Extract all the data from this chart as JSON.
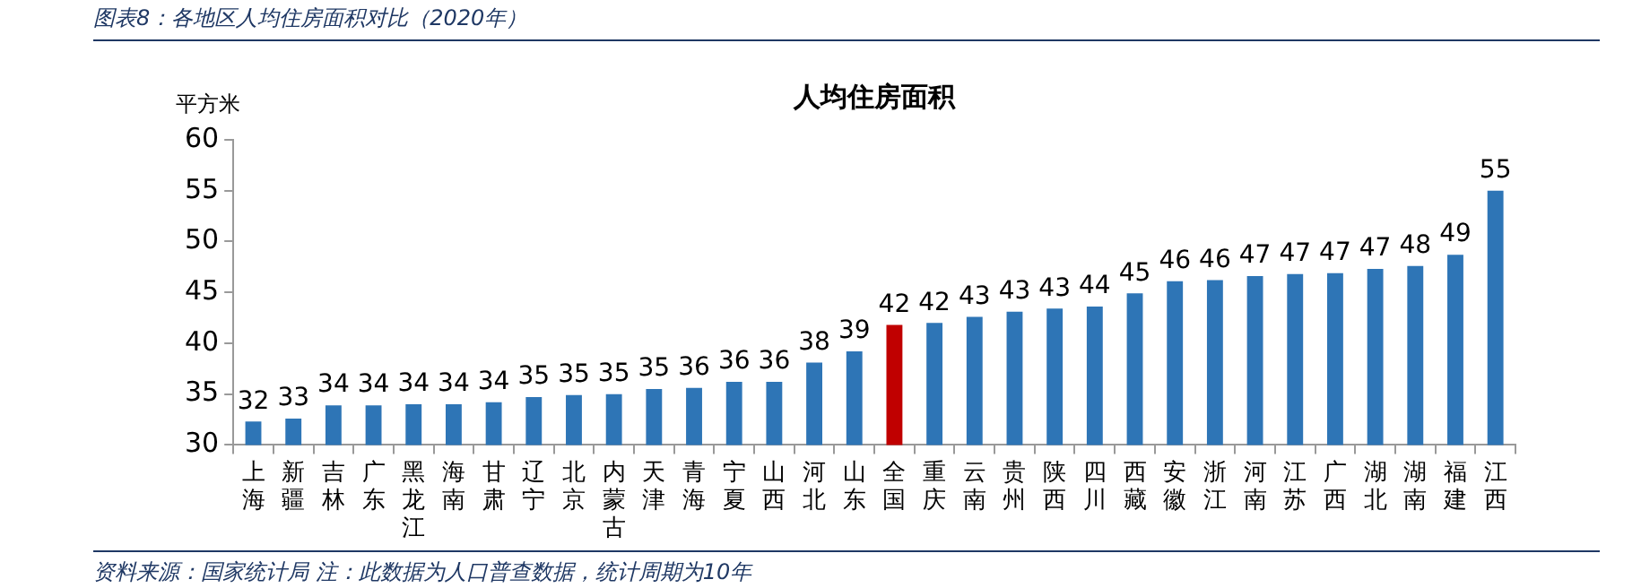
{
  "chart_data": {
    "type": "bar",
    "title": "图表8：各地区人均住房面积对比（2020年）",
    "subtitle": "人均住房面积",
    "ylabel": "平方米",
    "categories": [
      "上海",
      "新疆",
      "吉林",
      "广东",
      "黑龙江",
      "海南",
      "甘肃",
      "辽宁",
      "北京",
      "内蒙古",
      "天津",
      "青海",
      "宁夏",
      "山西",
      "河北",
      "山东",
      "全国",
      "重庆",
      "云南",
      "贵州",
      "陕西",
      "四川",
      "西藏",
      "安徽",
      "浙江",
      "河南",
      "江苏",
      "广西",
      "湖北",
      "湖南",
      "福建",
      "江西"
    ],
    "values": [
      32.3,
      32.6,
      33.9,
      33.9,
      34.0,
      34.0,
      34.2,
      34.7,
      34.9,
      35.0,
      35.5,
      35.6,
      36.2,
      36.2,
      38.1,
      39.2,
      41.8,
      42.0,
      42.6,
      43.1,
      43.4,
      43.6,
      44.9,
      46.1,
      46.2,
      46.6,
      46.8,
      46.9,
      47.3,
      47.6,
      48.7,
      55.0
    ],
    "value_labels": [
      "32",
      "33",
      "34",
      "34",
      "34",
      "34",
      "34",
      "35",
      "35",
      "35",
      "35",
      "36",
      "36",
      "36",
      "38",
      "39",
      "42",
      "42",
      "43",
      "43",
      "43",
      "44",
      "45",
      "46",
      "46",
      "47",
      "47",
      "47",
      "47",
      "48",
      "49",
      "55"
    ],
    "colors": [
      "#2e75b6",
      "#2e75b6",
      "#2e75b6",
      "#2e75b6",
      "#2e75b6",
      "#2e75b6",
      "#2e75b6",
      "#2e75b6",
      "#2e75b6",
      "#2e75b6",
      "#2e75b6",
      "#2e75b6",
      "#2e75b6",
      "#2e75b6",
      "#2e75b6",
      "#2e75b6",
      "#c00000",
      "#2e75b6",
      "#2e75b6",
      "#2e75b6",
      "#2e75b6",
      "#2e75b6",
      "#2e75b6",
      "#2e75b6",
      "#2e75b6",
      "#2e75b6",
      "#2e75b6",
      "#2e75b6",
      "#2e75b6",
      "#2e75b6",
      "#2e75b6",
      "#2e75b6"
    ],
    "ylim": [
      30,
      60
    ],
    "yticks": [
      30,
      35,
      40,
      45,
      50,
      55,
      60
    ],
    "grid": false,
    "legend": false,
    "annotations": [
      "资料来源：国家统计局  注：此数据为人口普查数据，统计周期为10年"
    ]
  }
}
